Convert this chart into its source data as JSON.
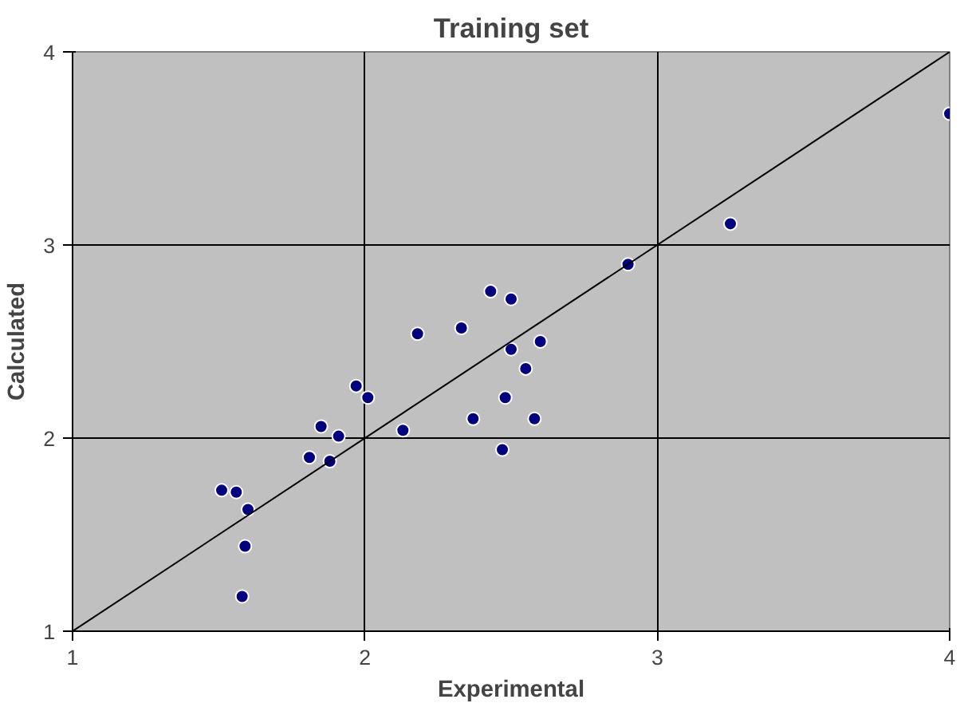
{
  "chart_data": {
    "type": "scatter",
    "title": "Training set",
    "xlabel": "Experimental",
    "ylabel": "Calculated",
    "xlim": [
      1,
      4
    ],
    "ylim": [
      1,
      4
    ],
    "xticks": [
      1,
      2,
      3,
      4
    ],
    "yticks": [
      1,
      2,
      3,
      4
    ],
    "grid": true,
    "series": [
      {
        "marker": "circle",
        "color": "#000080",
        "x": [
          1.51,
          1.56,
          1.6,
          1.59,
          1.58,
          1.81,
          1.85,
          1.88,
          1.91,
          1.97,
          2.01,
          2.13,
          2.18,
          2.33,
          2.37,
          2.43,
          2.47,
          2.48,
          2.5,
          2.5,
          2.55,
          2.58,
          2.6,
          2.9,
          3.25,
          4.0
        ],
        "values": [
          1.73,
          1.72,
          1.63,
          1.44,
          1.18,
          1.9,
          2.06,
          1.88,
          2.01,
          2.27,
          2.21,
          2.04,
          2.54,
          2.57,
          2.1,
          2.76,
          1.94,
          2.21,
          2.46,
          2.72,
          2.36,
          2.1,
          2.5,
          2.9,
          3.11,
          3.68
        ]
      },
      {
        "type": "line",
        "color": "#000000",
        "x": [
          1,
          4
        ],
        "values": [
          1,
          4
        ]
      }
    ]
  }
}
